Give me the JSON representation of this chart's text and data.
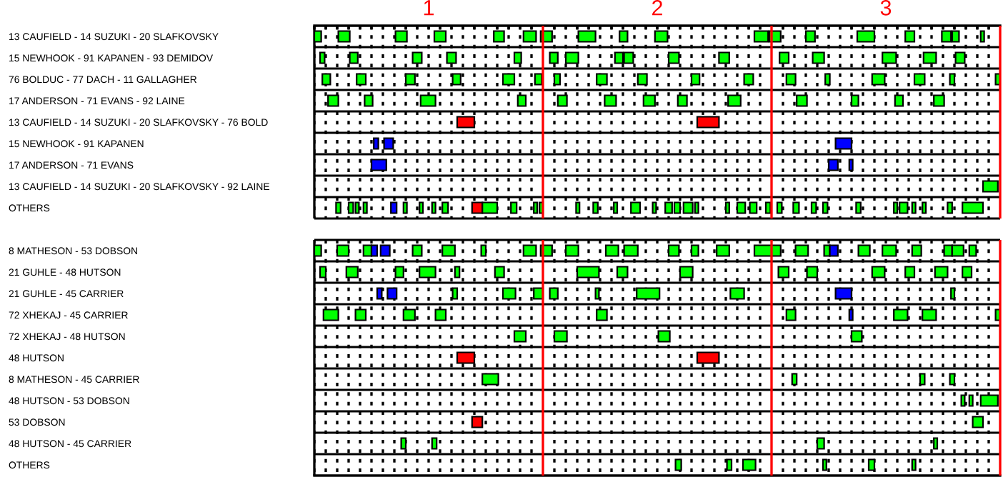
{
  "chart_data": {
    "type": "bar",
    "orientation": "horizontal",
    "grid": true,
    "categories": [
      "13 CAUFIELD - 14 SUZUKI - 20 SLAFKOVSKY",
      "15 NEWHOOK - 91 KAPANEN - 93 DEMIDOV",
      "76 BOLDUC - 77 DACH - 11 GALLAGHER",
      "17 ANDERSON - 71 EVANS - 92 LAINE",
      "13 CAUFIELD - 14 SUZUKI - 20 SLAFKOVSKY - 76 BOLD",
      "15 NEWHOOK - 91 KAPANEN",
      "17 ANDERSON - 71 EVANS",
      "13 CAUFIELD - 14 SUZUKI - 20 SLAFKOVSKY - 92 LAINE",
      "OTHERS",
      null,
      "8 MATHESON - 53 DOBSON",
      "21 GUHLE - 48 HUTSON",
      "21 GUHLE - 45 CARRIER",
      "72 XHEKAJ - 45 CARRIER",
      "72 XHEKAJ - 48 HUTSON",
      "48 HUTSON",
      "8 MATHESON - 45 CARRIER",
      "48 HUTSON - 53 DOBSON",
      "53 DOBSON",
      "48 HUTSON - 45 CARRIER",
      "OTHERS"
    ],
    "xlim": [
      0.5,
      3.5
    ],
    "xticks": [
      {
        "value": 0.5,
        "label": null
      },
      {
        "value": 0.55,
        "label": null
      },
      {
        "value": 0.6,
        "label": null
      },
      {
        "value": 0.65,
        "label": null
      },
      {
        "value": 0.7,
        "label": null
      },
      {
        "value": 0.75,
        "label": null
      },
      {
        "value": 0.8,
        "label": null
      },
      {
        "value": 0.85,
        "label": null
      },
      {
        "value": 0.9,
        "label": null
      },
      {
        "value": 0.95,
        "label": null
      },
      1,
      {
        "value": 1.05,
        "label": null
      },
      {
        "value": 1.1,
        "label": null
      },
      {
        "value": 1.15,
        "label": null
      },
      {
        "value": 1.2,
        "label": null
      },
      {
        "value": 1.25,
        "label": null
      },
      {
        "value": 1.3,
        "label": null
      },
      {
        "value": 1.35,
        "label": null
      },
      {
        "value": 1.4,
        "label": null
      },
      {
        "value": 1.45,
        "label": null
      },
      {
        "value": 1.55,
        "label": null
      },
      {
        "value": 1.6,
        "label": null
      },
      {
        "value": 1.65,
        "label": null
      },
      {
        "value": 1.7,
        "label": null
      },
      {
        "value": 1.75,
        "label": null
      },
      {
        "value": 1.8,
        "label": null
      },
      {
        "value": 1.85,
        "label": null
      },
      {
        "value": 1.9,
        "label": null
      },
      {
        "value": 1.95,
        "label": null
      },
      2,
      {
        "value": 2.05,
        "label": null
      },
      {
        "value": 2.1,
        "label": null
      },
      {
        "value": 2.15,
        "label": null
      },
      {
        "value": 2.2,
        "label": null
      },
      {
        "value": 2.25,
        "label": null
      },
      {
        "value": 2.3,
        "label": null
      },
      {
        "value": 2.35,
        "label": null
      },
      {
        "value": 2.4,
        "label": null
      },
      {
        "value": 2.45,
        "label": null
      },
      {
        "value": 2.55,
        "label": null
      },
      {
        "value": 2.6,
        "label": null
      },
      {
        "value": 2.65,
        "label": null
      },
      {
        "value": 2.7,
        "label": null
      },
      {
        "value": 2.75,
        "label": null
      },
      {
        "value": 2.8,
        "label": null
      },
      {
        "value": 2.85,
        "label": null
      },
      {
        "value": 2.9,
        "label": null
      },
      {
        "value": 2.95,
        "label": null
      },
      3,
      {
        "value": 3.05,
        "label": null
      },
      {
        "value": 3.1,
        "label": null
      },
      {
        "value": 3.15,
        "label": null
      },
      {
        "value": 3.2,
        "label": null
      },
      {
        "value": 3.25,
        "label": null
      },
      {
        "value": 3.3,
        "label": null
      },
      {
        "value": 3.35,
        "label": null
      },
      {
        "value": 3.4,
        "label": null
      },
      {
        "value": 3.45,
        "label": null
      }
    ],
    "ref_lines": [
      {
        "axis": "x",
        "value": 1.5,
        "color": "#ff0000"
      },
      {
        "axis": "x",
        "value": 2.5,
        "color": "#ff0000"
      },
      {
        "axis": "x",
        "value": 3.5,
        "color": "#ff0000"
      }
    ],
    "series": [
      {
        "color": "#00ff00",
        "values": [
          0.03,
          0.02,
          0.035,
          0.045,
          0.075,
          0.02,
          0.065,
          0.065,
          0.02,
          null,
          0.03,
          0.025,
          0.02,
          0.065,
          0.05,
          0.075,
          0.07,
          0.015,
          0.045,
          0.02,
          0.025
        ],
        "base": [
          0.5,
          0.525,
          0.535,
          0.56,
          1.125,
          0.76,
          0.75,
          3.425,
          0.595,
          null,
          0.5,
          0.525,
          0.775,
          0.54,
          1.375,
          1.125,
          1.235,
          3.33,
          1.19,
          0.88,
          2.08
        ],
        "colors": [
          null,
          null,
          null,
          null,
          "#ff0000",
          "#0000ff",
          "#0000ff",
          null,
          null,
          null,
          null,
          null,
          "#0000ff",
          null,
          null,
          "#ff0000",
          null,
          null,
          "#ff0000",
          null,
          null
        ]
      },
      {
        "color": "#00ff00",
        "values": [
          0.05,
          0.035,
          0.04,
          0.035,
          0.095,
          0.04,
          0.04,
          null,
          0.02,
          null,
          0.05,
          0.05,
          0.04,
          0.045,
          0.055,
          0.095,
          0.02,
          0.015,
          0.045,
          0.02,
          0.02
        ],
        "base": [
          0.605,
          0.655,
          0.685,
          0.72,
          2.175,
          0.805,
          2.75,
          null,
          0.65,
          null,
          0.6,
          0.64,
          0.82,
          0.68,
          1.55,
          2.175,
          2.59,
          3.365,
          3.38,
          1.015,
          2.305
        ],
        "colors": [
          null,
          null,
          null,
          null,
          "#ff0000",
          "#0000ff",
          "#0000ff",
          null,
          null,
          null,
          null,
          null,
          "#0000ff",
          null,
          null,
          "#ff0000",
          null,
          null,
          null,
          null,
          null
        ]
      },
      {
        "color": "#00ff00",
        "values": [
          0.05,
          0.04,
          0.04,
          0.065,
          null,
          0.07,
          0.015,
          null,
          0.015,
          null,
          0.035,
          0.035,
          0.02,
          0.05,
          0.05,
          null,
          0.02,
          0.075,
          null,
          0.03,
          0.055
        ],
        "base": [
          0.855,
          0.93,
          0.9,
          0.965,
          null,
          2.78,
          2.84,
          null,
          0.68,
          null,
          0.715,
          0.855,
          1.105,
          0.89,
          2.005,
          null,
          3.15,
          3.415,
          null,
          2.7,
          2.375
        ],
        "colors": [
          null,
          null,
          null,
          null,
          null,
          "#0000ff",
          "#0000ff",
          null,
          null,
          null,
          null,
          null,
          null,
          null,
          null,
          null,
          null,
          null,
          null,
          null,
          null
        ]
      },
      {
        "color": "#00ff00",
        "values": [
          0.05,
          0.04,
          0.035,
          0.035,
          null,
          null,
          null,
          null,
          0.015,
          null,
          0.025,
          0.07,
          0.055,
          0.045,
          0.045,
          null,
          0.02,
          null,
          null,
          0.015,
          0.015
        ],
        "base": [
          1.025,
          1.08,
          1.105,
          1.39,
          null,
          null,
          null,
          null,
          0.715,
          null,
          0.75,
          0.96,
          1.325,
          1.03,
          2.85,
          null,
          3.28,
          null,
          null,
          3.21,
          2.725
        ],
        "colors": [
          null,
          null,
          null,
          null,
          null,
          null,
          null,
          null,
          null,
          null,
          "#0000ff",
          null,
          null,
          null,
          null,
          null,
          null,
          null,
          null,
          null,
          null
        ]
      },
      {
        "color": "#00ff00",
        "values": [
          0.045,
          0.03,
          0.05,
          0.04,
          null,
          null,
          null,
          null,
          0.025,
          null,
          0.04,
          0.02,
          0.04,
          0.045,
          null,
          null,
          null,
          null,
          null,
          null,
          0.025
        ],
        "base": [
          1.285,
          1.375,
          1.325,
          1.565,
          null,
          null,
          null,
          null,
          0.835,
          null,
          0.79,
          1.115,
          1.46,
          1.735,
          null,
          null,
          null,
          null,
          null,
          null,
          2.925
        ],
        "colors": [
          null,
          null,
          null,
          null,
          null,
          null,
          null,
          null,
          "#0000ff",
          null,
          "#0000ff",
          null,
          null,
          null,
          null,
          null,
          null,
          null,
          null,
          null,
          null
        ]
      },
      {
        "color": "#00ff00",
        "values": [
          0.055,
          0.035,
          0.03,
          0.05,
          null,
          null,
          null,
          null,
          0.015,
          null,
          0.04,
          0.04,
          0.035,
          0.04,
          null,
          null,
          null,
          null,
          null,
          null,
          0.015
        ],
        "base": [
          1.415,
          1.53,
          1.465,
          1.77,
          null,
          null,
          null,
          null,
          0.89,
          null,
          0.93,
          1.29,
          1.53,
          2.565,
          null,
          null,
          null,
          null,
          null,
          null,
          3.115
        ]
      },
      {
        "color": "#00ff00",
        "values": [
          0.05,
          0.055,
          0.025,
          0.05,
          null,
          null,
          null,
          null,
          0.015,
          null,
          0.055,
          0.095,
          0.015,
          0.015,
          null,
          null,
          null,
          null,
          null,
          null,
          null
        ],
        "base": [
          1.49,
          1.6,
          1.55,
          1.94,
          null,
          null,
          null,
          null,
          0.96,
          null,
          1.06,
          1.65,
          1.73,
          2.84,
          null,
          null,
          null,
          null,
          null,
          null,
          null
        ],
        "colors": [
          null,
          null,
          null,
          null,
          null,
          null,
          null,
          null,
          null,
          null,
          null,
          null,
          null,
          "#0000ff",
          null,
          null,
          null,
          null,
          null,
          null,
          null
        ]
      },
      {
        "color": "#00ff00",
        "values": [
          0.075,
          0.035,
          0.045,
          0.04,
          null,
          null,
          null,
          null,
          0.015,
          null,
          0.02,
          0.045,
          0.1,
          0.06,
          null,
          null,
          null,
          null,
          null,
          null,
          null
        ],
        "base": [
          1.655,
          1.815,
          1.735,
          2.09,
          null,
          null,
          null,
          null,
          1.015,
          null,
          1.23,
          1.825,
          1.91,
          3.035,
          null,
          null,
          null,
          null,
          null,
          null,
          null
        ]
      },
      {
        "color": "#00ff00",
        "values": [
          0.035,
          0.04,
          0.04,
          0.055,
          null,
          null,
          null,
          null,
          0.025,
          null,
          0.055,
          0.055,
          0.06,
          0.06,
          null,
          null,
          null,
          null,
          null,
          null,
          null
        ],
        "base": [
          1.835,
          1.855,
          1.915,
          2.31,
          null,
          null,
          null,
          null,
          1.06,
          null,
          1.415,
          2.1,
          2.32,
          3.16,
          null,
          null,
          null,
          null,
          null,
          null,
          null
        ]
      },
      {
        "color": "#00ff00",
        "values": [
          0.055,
          0.045,
          0.035,
          0.045,
          null,
          null,
          null,
          null,
          0.045,
          null,
          0.05,
          0.045,
          0.07,
          0.02,
          null,
          null,
          null,
          null,
          null,
          null,
          null
        ],
        "base": [
          1.99,
          2.05,
          2.15,
          2.61,
          null,
          null,
          null,
          null,
          1.19,
          null,
          1.49,
          2.53,
          2.78,
          3.48,
          null,
          null,
          null,
          null,
          null,
          null,
          null
        ],
        "colors": [
          null,
          null,
          null,
          null,
          null,
          null,
          null,
          null,
          "#ff0000",
          null,
          null,
          null,
          "#0000ff",
          null,
          null,
          null,
          null,
          null,
          null,
          null,
          null
        ]
      },
      {
        "color": "#00ff00",
        "values": [
          0.06,
          0.045,
          0.04,
          0.03,
          null,
          null,
          null,
          null,
          0.065,
          null,
          0.055,
          0.045,
          0.015,
          null,
          null,
          null,
          null,
          null,
          null,
          null,
          null
        ],
        "base": [
          2.425,
          2.27,
          2.38,
          2.85,
          null,
          null,
          null,
          null,
          1.235,
          null,
          1.6,
          2.655,
          3.285,
          null,
          null,
          null,
          null,
          null,
          null,
          null,
          null
        ]
      },
      {
        "color": "#00ff00",
        "values": [
          0.05,
          0.04,
          0.04,
          0.035,
          null,
          null,
          null,
          null,
          0.025,
          null,
          0.055,
          0.055,
          null,
          null,
          null,
          null,
          null,
          null,
          null,
          null,
          null
        ],
        "base": [
          2.49,
          2.535,
          2.565,
          3.04,
          null,
          null,
          null,
          null,
          1.36,
          null,
          1.775,
          2.94,
          null,
          null,
          null,
          null,
          null,
          null,
          null,
          null,
          null
        ]
      },
      {
        "color": "#00ff00",
        "values": [
          0.04,
          0.05,
          0.02,
          0.045,
          null,
          null,
          null,
          null,
          0.015,
          null,
          0.06,
          0.04,
          null,
          null,
          null,
          null,
          null,
          null,
          null,
          null,
          null
        ],
        "base": [
          2.65,
          2.68,
          2.735,
          3.21,
          null,
          null,
          null,
          null,
          1.46,
          null,
          1.855,
          3.085,
          null,
          null,
          null,
          null,
          null,
          null,
          null,
          null,
          null
        ]
      },
      {
        "color": "#00ff00",
        "values": [
          0.075,
          0.06,
          0.055,
          null,
          null,
          null,
          null,
          null,
          0.015,
          null,
          0.045,
          0.055,
          null,
          null,
          null,
          null,
          null,
          null,
          null,
          null,
          null
        ],
        "base": [
          2.875,
          2.985,
          2.94,
          null,
          null,
          null,
          null,
          null,
          1.485,
          null,
          2.05,
          3.215,
          null,
          null,
          null,
          null,
          null,
          null,
          null,
          null,
          null
        ]
      },
      {
        "color": "#00ff00",
        "values": [
          0.04,
          0.055,
          0.045,
          null,
          null,
          null,
          null,
          null,
          0.015,
          null,
          0.03,
          0.04,
          null,
          null,
          null,
          null,
          null,
          null,
          null,
          null,
          null
        ],
        "base": [
          3.085,
          3.165,
          3.125,
          null,
          null,
          null,
          null,
          null,
          1.645,
          null,
          2.15,
          3.335,
          null,
          null,
          null,
          null,
          null,
          null,
          null,
          null,
          null
        ]
      },
      {
        "color": "#00ff00",
        "values": [
          0.04,
          0.04,
          0.02,
          null,
          null,
          null,
          null,
          null,
          0.02,
          null,
          0.055,
          null,
          null,
          null,
          null,
          null,
          null,
          null,
          null,
          null,
          null
        ],
        "base": [
          3.245,
          3.305,
          3.28,
          null,
          null,
          null,
          null,
          null,
          1.72,
          null,
          2.26,
          null,
          null,
          null,
          null,
          null,
          null,
          null,
          null,
          null,
          null
        ]
      },
      {
        "color": "#00ff00",
        "values": [
          0.03,
          null,
          0.02,
          null,
          null,
          null,
          null,
          null,
          0.015,
          null,
          0.115,
          null,
          null,
          null,
          null,
          null,
          null,
          null,
          null,
          null,
          null
        ],
        "base": [
          3.29,
          null,
          3.48,
          null,
          null,
          null,
          null,
          null,
          1.81,
          null,
          2.425,
          null,
          null,
          null,
          null,
          null,
          null,
          null,
          null,
          null,
          null
        ]
      },
      {
        "color": "#00ff00",
        "values": [
          0.015,
          null,
          null,
          null,
          null,
          null,
          null,
          null,
          0.04,
          null,
          0.055,
          null,
          null,
          null,
          null,
          null,
          null,
          null,
          null,
          null,
          null
        ],
        "base": [
          3.415,
          null,
          null,
          null,
          null,
          null,
          null,
          null,
          1.885,
          null,
          2.605,
          null,
          null,
          null,
          null,
          null,
          null,
          null,
          null,
          null,
          null
        ]
      },
      {
        "color": "#00ff00",
        "values": [
          null,
          null,
          null,
          null,
          null,
          null,
          null,
          null,
          0.015,
          null,
          0.025,
          null,
          null,
          null,
          null,
          null,
          null,
          null,
          null,
          null,
          null
        ],
        "base": [
          null,
          null,
          null,
          null,
          null,
          null,
          null,
          null,
          1.98,
          null,
          2.73,
          null,
          null,
          null,
          null,
          null,
          null,
          null,
          null,
          null,
          null
        ]
      },
      {
        "color": "#00ff00",
        "values": [
          null,
          null,
          null,
          null,
          null,
          null,
          null,
          null,
          0.03,
          null,
          0.035,
          null,
          null,
          null,
          null,
          null,
          null,
          null,
          null,
          null,
          null
        ],
        "base": [
          null,
          null,
          null,
          null,
          null,
          null,
          null,
          null,
          2.035,
          null,
          2.755,
          null,
          null,
          null,
          null,
          null,
          null,
          null,
          null,
          null,
          null
        ],
        "colors": [
          null,
          null,
          null,
          null,
          null,
          null,
          null,
          null,
          null,
          null,
          "#0000ff",
          null,
          null,
          null,
          null,
          null,
          null,
          null,
          null,
          null,
          null
        ]
      },
      {
        "color": "#00ff00",
        "values": [
          null,
          null,
          null,
          null,
          null,
          null,
          null,
          null,
          0.025,
          null,
          0.05,
          null,
          null,
          null,
          null,
          null,
          null,
          null,
          null,
          null,
          null
        ],
        "base": [
          null,
          null,
          null,
          null,
          null,
          null,
          null,
          null,
          2.075,
          null,
          2.88,
          null,
          null,
          null,
          null,
          null,
          null,
          null,
          null,
          null,
          null
        ]
      },
      {
        "color": "#00ff00",
        "values": [
          null,
          null,
          null,
          null,
          null,
          null,
          null,
          null,
          0.04,
          null,
          0.06,
          null,
          null,
          null,
          null,
          null,
          null,
          null,
          null,
          null,
          null
        ],
        "base": [
          null,
          null,
          null,
          null,
          null,
          null,
          null,
          null,
          2.115,
          null,
          2.985,
          null,
          null,
          null,
          null,
          null,
          null,
          null,
          null,
          null,
          null
        ]
      },
      {
        "color": "#00ff00",
        "values": [
          null,
          null,
          null,
          null,
          null,
          null,
          null,
          null,
          0.015,
          null,
          0.04,
          null,
          null,
          null,
          null,
          null,
          null,
          null,
          null,
          null,
          null
        ],
        "base": [
          null,
          null,
          null,
          null,
          null,
          null,
          null,
          null,
          2.165,
          null,
          3.115,
          null,
          null,
          null,
          null,
          null,
          null,
          null,
          null,
          null,
          null
        ]
      },
      {
        "color": "#00ff00",
        "values": [
          null,
          null,
          null,
          null,
          null,
          null,
          null,
          null,
          0.015,
          null,
          0.035,
          null,
          null,
          null,
          null,
          null,
          null,
          null,
          null,
          null,
          null
        ],
        "base": [
          null,
          null,
          null,
          null,
          null,
          null,
          null,
          null,
          2.3,
          null,
          3.255,
          null,
          null,
          null,
          null,
          null,
          null,
          null,
          null,
          null,
          null
        ]
      },
      {
        "color": "#00ff00",
        "values": [
          null,
          null,
          null,
          null,
          null,
          null,
          null,
          null,
          0.035,
          null,
          0.05,
          null,
          null,
          null,
          null,
          null,
          null,
          null,
          null,
          null,
          null
        ],
        "base": [
          null,
          null,
          null,
          null,
          null,
          null,
          null,
          null,
          2.35,
          null,
          3.29,
          null,
          null,
          null,
          null,
          null,
          null,
          null,
          null,
          null,
          null
        ]
      },
      {
        "color": "#00ff00",
        "values": [
          null,
          null,
          null,
          null,
          null,
          null,
          null,
          null,
          0.03,
          null,
          0.03,
          null,
          null,
          null,
          null,
          null,
          null,
          null,
          null,
          null,
          null
        ],
        "base": [
          null,
          null,
          null,
          null,
          null,
          null,
          null,
          null,
          2.405,
          null,
          3.365,
          null,
          null,
          null,
          null,
          null,
          null,
          null,
          null,
          null,
          null
        ]
      },
      {
        "color": "#00ff00",
        "values": [
          null,
          null,
          null,
          null,
          null,
          null,
          null,
          null,
          0.02,
          null,
          null,
          null,
          null,
          null,
          null,
          null,
          null,
          null,
          null,
          null,
          null
        ],
        "base": [
          null,
          null,
          null,
          null,
          null,
          null,
          null,
          null,
          2.475,
          null,
          null,
          null,
          null,
          null,
          null,
          null,
          null,
          null,
          null,
          null,
          null
        ]
      },
      {
        "color": "#00ff00",
        "values": [
          null,
          null,
          null,
          null,
          null,
          null,
          null,
          null,
          0.02,
          null,
          null,
          null,
          null,
          null,
          null,
          null,
          null,
          null,
          null,
          null,
          null
        ],
        "base": [
          null,
          null,
          null,
          null,
          null,
          null,
          null,
          null,
          2.525,
          null,
          null,
          null,
          null,
          null,
          null,
          null,
          null,
          null,
          null,
          null,
          null
        ]
      },
      {
        "color": "#00ff00",
        "values": [
          null,
          null,
          null,
          null,
          null,
          null,
          null,
          null,
          0.025,
          null,
          null,
          null,
          null,
          null,
          null,
          null,
          null,
          null,
          null,
          null,
          null
        ],
        "base": [
          null,
          null,
          null,
          null,
          null,
          null,
          null,
          null,
          2.595,
          null,
          null,
          null,
          null,
          null,
          null,
          null,
          null,
          null,
          null,
          null,
          null
        ]
      },
      {
        "color": "#00ff00",
        "values": [
          null,
          null,
          null,
          null,
          null,
          null,
          null,
          null,
          0.02,
          null,
          null,
          null,
          null,
          null,
          null,
          null,
          null,
          null,
          null,
          null,
          null
        ],
        "base": [
          null,
          null,
          null,
          null,
          null,
          null,
          null,
          null,
          2.675,
          null,
          null,
          null,
          null,
          null,
          null,
          null,
          null,
          null,
          null,
          null,
          null
        ]
      },
      {
        "color": "#00ff00",
        "values": [
          null,
          null,
          null,
          null,
          null,
          null,
          null,
          null,
          0.02,
          null,
          null,
          null,
          null,
          null,
          null,
          null,
          null,
          null,
          null,
          null,
          null
        ],
        "base": [
          null,
          null,
          null,
          null,
          null,
          null,
          null,
          null,
          2.725,
          null,
          null,
          null,
          null,
          null,
          null,
          null,
          null,
          null,
          null,
          null,
          null
        ]
      },
      {
        "color": "#00ff00",
        "values": [
          null,
          null,
          null,
          null,
          null,
          null,
          null,
          null,
          0.02,
          null,
          null,
          null,
          null,
          null,
          null,
          null,
          null,
          null,
          null,
          null,
          null
        ],
        "base": [
          null,
          null,
          null,
          null,
          null,
          null,
          null,
          null,
          2.87,
          null,
          null,
          null,
          null,
          null,
          null,
          null,
          null,
          null,
          null,
          null,
          null
        ]
      },
      {
        "color": "#00ff00",
        "values": [
          null,
          null,
          null,
          null,
          null,
          null,
          null,
          null,
          0.015,
          null,
          null,
          null,
          null,
          null,
          null,
          null,
          null,
          null,
          null,
          null,
          null
        ],
        "base": [
          null,
          null,
          null,
          null,
          null,
          null,
          null,
          null,
          3.035,
          null,
          null,
          null,
          null,
          null,
          null,
          null,
          null,
          null,
          null,
          null,
          null
        ]
      },
      {
        "color": "#00ff00",
        "values": [
          null,
          null,
          null,
          null,
          null,
          null,
          null,
          null,
          0.035,
          null,
          null,
          null,
          null,
          null,
          null,
          null,
          null,
          null,
          null,
          null,
          null
        ],
        "base": [
          null,
          null,
          null,
          null,
          null,
          null,
          null,
          null,
          3.06,
          null,
          null,
          null,
          null,
          null,
          null,
          null,
          null,
          null,
          null,
          null,
          null
        ]
      },
      {
        "color": "#00ff00",
        "values": [
          null,
          null,
          null,
          null,
          null,
          null,
          null,
          null,
          0.015,
          null,
          null,
          null,
          null,
          null,
          null,
          null,
          null,
          null,
          null,
          null,
          null
        ],
        "base": [
          null,
          null,
          null,
          null,
          null,
          null,
          null,
          null,
          3.115,
          null,
          null,
          null,
          null,
          null,
          null,
          null,
          null,
          null,
          null,
          null,
          null
        ]
      },
      {
        "color": "#00ff00",
        "values": [
          null,
          null,
          null,
          null,
          null,
          null,
          null,
          null,
          0.015,
          null,
          null,
          null,
          null,
          null,
          null,
          null,
          null,
          null,
          null,
          null,
          null
        ],
        "base": [
          null,
          null,
          null,
          null,
          null,
          null,
          null,
          null,
          3.16,
          null,
          null,
          null,
          null,
          null,
          null,
          null,
          null,
          null,
          null,
          null,
          null
        ]
      },
      {
        "color": "#00ff00",
        "values": [
          null,
          null,
          null,
          null,
          null,
          null,
          null,
          null,
          0.02,
          null,
          null,
          null,
          null,
          null,
          null,
          null,
          null,
          null,
          null,
          null,
          null
        ],
        "base": [
          null,
          null,
          null,
          null,
          null,
          null,
          null,
          null,
          3.27,
          null,
          null,
          null,
          null,
          null,
          null,
          null,
          null,
          null,
          null,
          null,
          null
        ]
      },
      {
        "color": "#00ff00",
        "values": [
          null,
          null,
          null,
          null,
          null,
          null,
          null,
          null,
          0.09,
          null,
          null,
          null,
          null,
          null,
          null,
          null,
          null,
          null,
          null,
          null,
          null
        ],
        "base": [
          null,
          null,
          null,
          null,
          null,
          null,
          null,
          null,
          3.335,
          null,
          null,
          null,
          null,
          null,
          null,
          null,
          null,
          null,
          null,
          null,
          null
        ]
      }
    ]
  }
}
